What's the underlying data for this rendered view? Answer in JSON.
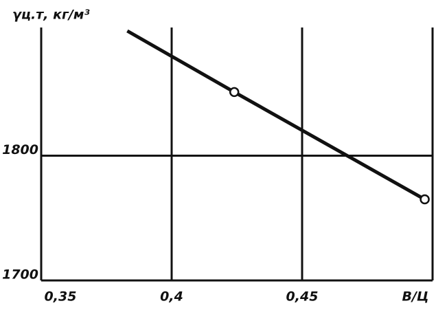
{
  "chart_data": {
    "type": "line",
    "y_label": "γц.т, кг/м³",
    "x_label": "В/Ц",
    "x": [
      0.383,
      0.424,
      0.497
    ],
    "series": [
      {
        "color": "#111111",
        "values": [
          1900,
          1851,
          1765
        ],
        "markers": [
          false,
          true,
          true
        ]
      }
    ],
    "xlim": [
      0.35,
      0.5
    ],
    "ylim": [
      1700,
      1900
    ],
    "xticks": [
      {
        "value": 0.35,
        "label": "0,35"
      },
      {
        "value": 0.4,
        "label": "0,4"
      },
      {
        "value": 0.45,
        "label": "0,45"
      }
    ],
    "yticks": [
      1700,
      1800
    ],
    "grid": true
  }
}
